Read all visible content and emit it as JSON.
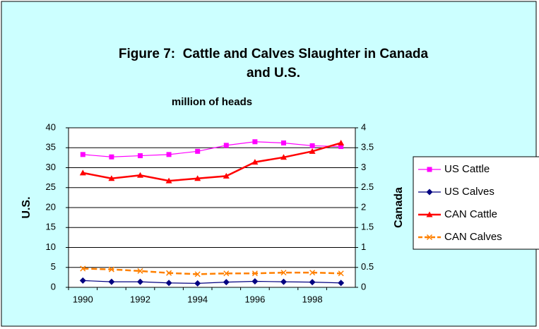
{
  "chart_data": {
    "type": "line",
    "title": [
      "Figure 7:  Cattle and Calves Slaughter in Canada",
      "and U.S."
    ],
    "subtitle": "million of heads",
    "ylabel": "U.S.",
    "y2label": "Canada",
    "categories": [
      "1990",
      null,
      "1992",
      null,
      "1994",
      null,
      "1996",
      null,
      "1998",
      null
    ],
    "ylim": [
      0,
      40
    ],
    "yticks": [
      0,
      5,
      10,
      15,
      20,
      25,
      30,
      35,
      40
    ],
    "y2lim": [
      0,
      4
    ],
    "y2ticks": [
      0,
      0.5,
      1,
      1.5,
      2,
      2.5,
      3,
      3.5,
      4
    ],
    "grid": true,
    "legend": "right",
    "series": [
      {
        "name": "US Cattle",
        "color": "#ff00ff",
        "marker": "square",
        "values": [
          33.3,
          32.7,
          33.0,
          33.3,
          34.1,
          35.6,
          36.5,
          36.2,
          35.5,
          35.3
        ]
      },
      {
        "name": "US Calves",
        "color": "#000080",
        "marker": "diamond",
        "values": [
          1.7,
          1.4,
          1.4,
          1.1,
          1.0,
          1.3,
          1.5,
          1.4,
          1.3,
          1.1
        ]
      },
      {
        "name": "CAN Cattle",
        "color": "#ff0000",
        "marker": "triangle",
        "axis": "y2",
        "values": [
          2.87,
          2.73,
          2.81,
          2.67,
          2.73,
          2.79,
          3.14,
          3.26,
          3.41,
          3.62
        ]
      },
      {
        "name": "CAN Calves",
        "color": "#ff8000",
        "marker": "x",
        "dash": true,
        "axis": "y2",
        "values": [
          0.47,
          0.45,
          0.41,
          0.36,
          0.33,
          0.35,
          0.35,
          0.37,
          0.37,
          0.35
        ]
      }
    ]
  }
}
